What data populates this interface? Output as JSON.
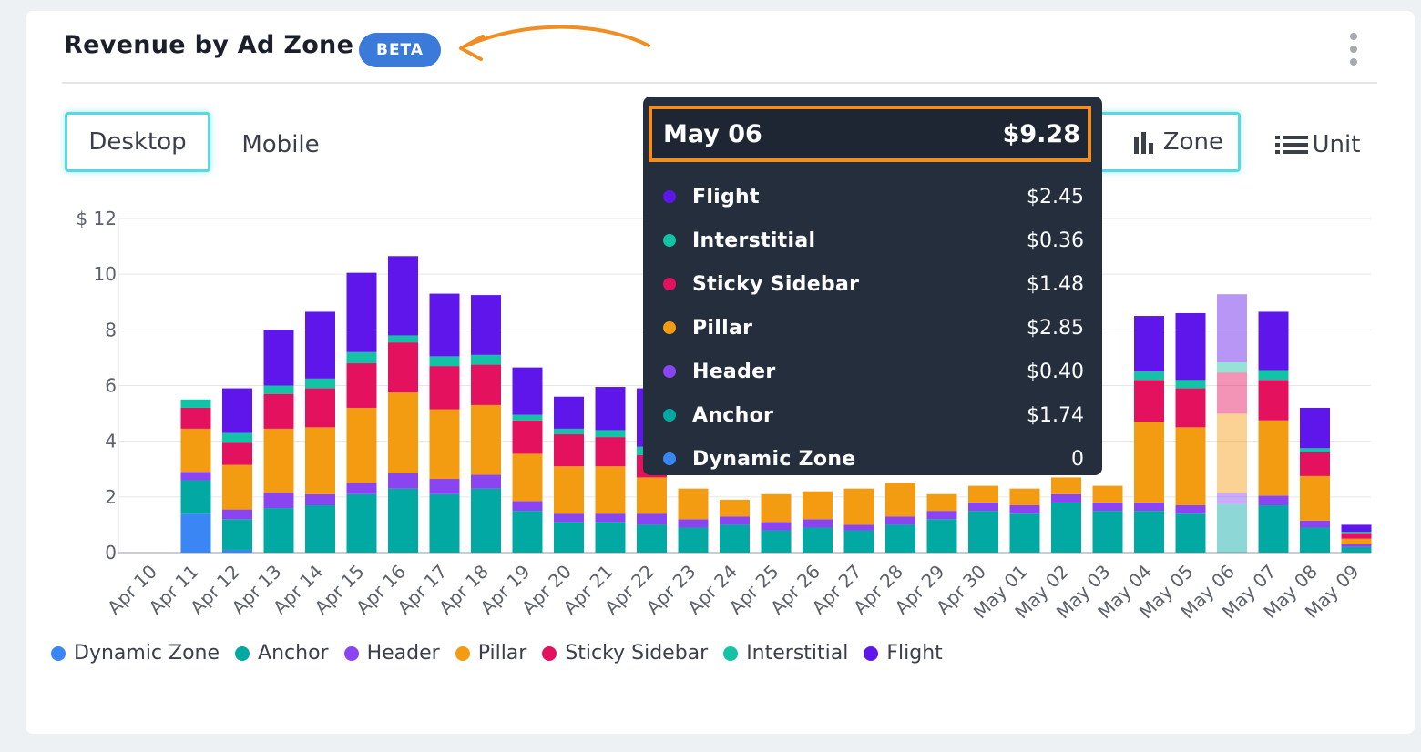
{
  "card": {
    "title": "Revenue by Ad Zone",
    "badge": "BETA",
    "tabs": [
      {
        "label": "Desktop",
        "active": true
      },
      {
        "label": "Mobile",
        "active": false
      }
    ],
    "group_buttons": [
      {
        "label": "Zone",
        "icon": "bar-chart-icon",
        "active": true
      },
      {
        "label": "Unit",
        "icon": "list-icon",
        "active": false
      }
    ]
  },
  "colors": {
    "Dynamic Zone": "#3b86f5",
    "Anchor": "#02a9a3",
    "Header": "#8a44f2",
    "Pillar": "#f39c12",
    "Sticky Sidebar": "#e4115f",
    "Interstitial": "#14c2a6",
    "Flight": "#5f16ea"
  },
  "tooltip": {
    "date": "May 06",
    "total": "$9.28",
    "rows": [
      {
        "name": "Flight",
        "value": "$2.45"
      },
      {
        "name": "Interstitial",
        "value": "$0.36"
      },
      {
        "name": "Sticky Sidebar",
        "value": "$1.48"
      },
      {
        "name": "Pillar",
        "value": "$2.85"
      },
      {
        "name": "Header",
        "value": "$0.40"
      },
      {
        "name": "Anchor",
        "value": "$1.74"
      },
      {
        "name": "Dynamic Zone",
        "value": "0"
      }
    ]
  },
  "chart_data": {
    "type": "bar",
    "stacked": true,
    "title": "",
    "xlabel": "",
    "ylabel": "",
    "y_prefix": "$",
    "ylim": [
      0,
      12
    ],
    "yticks": [
      0,
      2,
      4,
      6,
      8,
      10,
      12
    ],
    "grid": true,
    "legend": "bottom-left",
    "highlighted_category": "May 06",
    "categories": [
      "Apr 10",
      "Apr 11",
      "Apr 12",
      "Apr 13",
      "Apr 14",
      "Apr 15",
      "Apr 16",
      "Apr 17",
      "Apr 18",
      "Apr 19",
      "Apr 20",
      "Apr 21",
      "Apr 22",
      "Apr 23",
      "Apr 24",
      "Apr 25",
      "Apr 26",
      "Apr 27",
      "Apr 28",
      "Apr 29",
      "Apr 30",
      "May 01",
      "May 02",
      "May 03",
      "May 04",
      "May 05",
      "May 06",
      "May 07",
      "May 08",
      "May 09"
    ],
    "series": [
      {
        "name": "Dynamic Zone",
        "values": [
          0,
          1.4,
          0.1,
          0,
          0,
          0,
          0,
          0,
          0,
          0,
          0,
          0,
          0,
          0,
          0,
          0,
          0,
          0,
          0,
          0,
          0,
          0,
          0,
          0,
          0,
          0,
          0,
          0,
          0,
          0
        ]
      },
      {
        "name": "Anchor",
        "values": [
          0,
          1.2,
          1.1,
          1.6,
          1.7,
          2.1,
          2.3,
          2.1,
          2.3,
          1.5,
          1.1,
          1.1,
          1.0,
          0.9,
          1.0,
          0.8,
          0.9,
          0.8,
          1.0,
          1.2,
          1.5,
          1.4,
          1.8,
          1.5,
          1.5,
          1.4,
          1.74,
          1.7,
          0.9,
          0.2
        ]
      },
      {
        "name": "Header",
        "values": [
          0,
          0.3,
          0.35,
          0.55,
          0.4,
          0.4,
          0.55,
          0.55,
          0.5,
          0.35,
          0.3,
          0.3,
          0.4,
          0.3,
          0.3,
          0.3,
          0.3,
          0.2,
          0.3,
          0.3,
          0.3,
          0.3,
          0.3,
          0.3,
          0.3,
          0.3,
          0.4,
          0.35,
          0.25,
          0.1
        ]
      },
      {
        "name": "Pillar",
        "values": [
          0,
          1.55,
          1.6,
          2.3,
          2.4,
          2.7,
          2.9,
          2.5,
          2.5,
          1.7,
          1.7,
          1.7,
          1.3,
          1.1,
          0.6,
          1.0,
          1.0,
          1.3,
          1.2,
          0.6,
          0.6,
          0.6,
          0.6,
          0.6,
          2.9,
          2.8,
          2.85,
          2.7,
          1.6,
          0.2
        ]
      },
      {
        "name": "Sticky Sidebar",
        "values": [
          0,
          0.75,
          0.8,
          1.25,
          1.4,
          1.6,
          1.8,
          1.55,
          1.45,
          1.2,
          1.15,
          1.05,
          0.8,
          0,
          0,
          0,
          0,
          0,
          0,
          0,
          0,
          0,
          0,
          0,
          1.5,
          1.4,
          1.48,
          1.45,
          0.85,
          0.2
        ]
      },
      {
        "name": "Interstitial",
        "values": [
          0,
          0.3,
          0.35,
          0.3,
          0.35,
          0.4,
          0.25,
          0.35,
          0.35,
          0.2,
          0.2,
          0.25,
          0.3,
          0,
          0,
          0,
          0,
          0,
          0,
          0,
          0,
          0,
          0,
          0,
          0.3,
          0.3,
          0.36,
          0.35,
          0.15,
          0.05
        ]
      },
      {
        "name": "Flight",
        "values": [
          0,
          0,
          1.6,
          2.0,
          2.4,
          2.85,
          2.85,
          2.25,
          2.15,
          1.7,
          1.15,
          1.55,
          2.1,
          0,
          0,
          0,
          0,
          0,
          0,
          0,
          0,
          0,
          0,
          0,
          2.0,
          2.4,
          2.45,
          2.1,
          1.45,
          0.25
        ]
      }
    ]
  }
}
